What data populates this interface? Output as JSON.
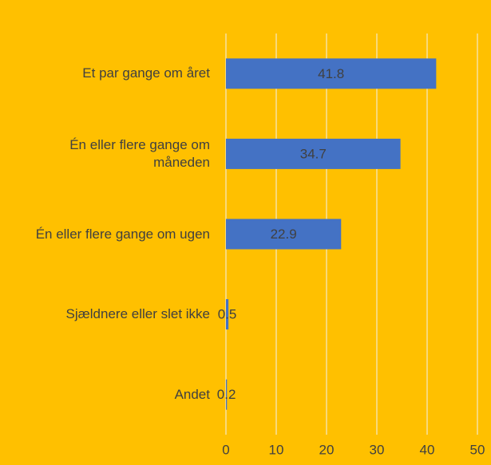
{
  "chart_data": {
    "type": "bar",
    "orientation": "horizontal",
    "categories": [
      "Et par gange om året",
      "Én eller flere gange om måneden",
      "Én eller flere gange om ugen",
      "Sjældnere eller slet ikke",
      "Andet"
    ],
    "values": [
      41.8,
      34.7,
      22.9,
      0.5,
      0.2
    ],
    "color": "#4472c4",
    "background": "#ffc000",
    "xlim": [
      0,
      50
    ],
    "xticks": [
      0,
      10,
      20,
      30,
      40,
      50
    ],
    "grid": true
  }
}
